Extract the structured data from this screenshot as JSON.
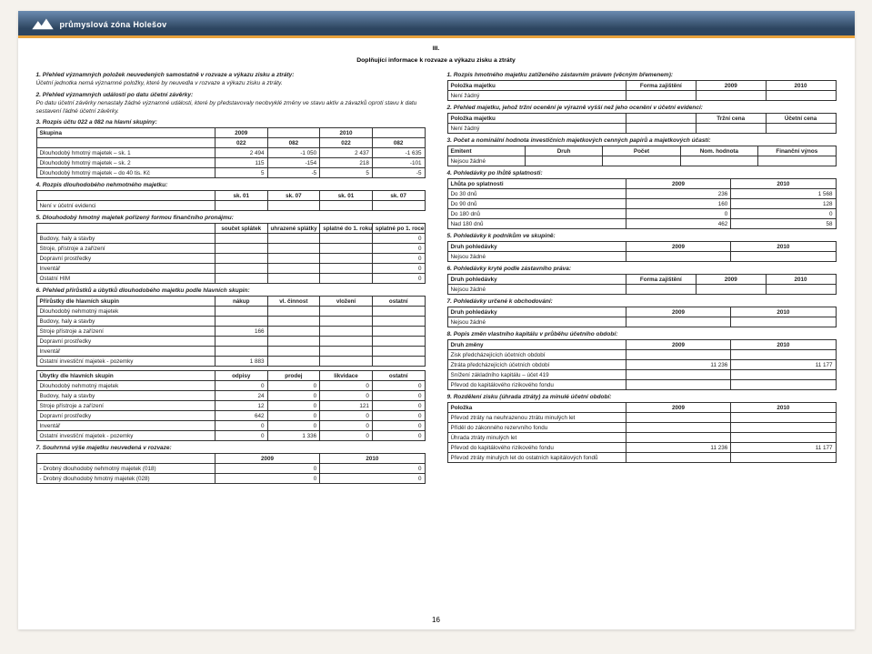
{
  "page_number": "16",
  "logo_text": "průmyslová zóna Holešov",
  "header": {
    "title_l1": "III.",
    "title_l2": "Doplňující informace k rozvaze a výkazu zisku a ztráty"
  },
  "left": {
    "i1": {
      "num": "1.",
      "title": "Přehled významných položek neuvedených samostatně v rozvaze a výkazu zisku a ztráty:",
      "text": "Účetní jednotka nemá významné položky, které by neuvedla v rozvaze a výkazu zisku a ztráty."
    },
    "i2": {
      "num": "2.",
      "title": "Přehled významných událostí po datu účetní závěrky:",
      "text": "Po datu účetní závěrky nenastaly žádné významné události, které by představovaly neobvyklé změny ve stavu aktiv a závazků oproti stavu k datu sestavení řádné účetní závěrky."
    },
    "i3": {
      "num": "3.",
      "title": "Rozpis účtu 022 a 082 na hlavní skupiny:"
    },
    "t3": {
      "head": [
        "Skupina",
        "2009",
        "",
        "2010",
        ""
      ],
      "sub": [
        "",
        "022",
        "082",
        "022",
        "082"
      ],
      "rows": [
        [
          "Dlouhodobý hmotný majetek – sk. 1",
          "2 494",
          "-1 050",
          "2 437",
          "-1 635"
        ],
        [
          "Dlouhodobý hmotný majetek – sk. 2",
          "115",
          "-154",
          "218",
          "-101"
        ],
        [
          "Dlouhodobý hmotný majetek – do 40 tis. Kč",
          "5",
          "-5",
          "5",
          "-5"
        ]
      ]
    },
    "i4": {
      "num": "4.",
      "title": "Rozpis dlouhodobého nehmotného majetku:"
    },
    "t4": {
      "head": [
        "",
        "sk. 01",
        "sk. 07",
        "sk. 01",
        "sk. 07"
      ],
      "row": [
        "Není v účetní evidenci",
        "",
        "",
        "",
        ""
      ]
    },
    "i5": {
      "num": "5.",
      "title": "Dlouhodobý hmotný majetek pořízený formou finančního pronájmu:"
    },
    "t5": {
      "head": [
        "",
        "součet splátek",
        "uhrazené splátky",
        "splatné do 1. roku",
        "splatné po 1. roce"
      ],
      "rows": [
        [
          "Budovy, haly a stavby",
          "",
          "",
          "",
          "0"
        ],
        [
          "Stroje, přístroje a zařízení",
          "",
          "",
          "",
          "0"
        ],
        [
          "Dopravní prostředky",
          "",
          "",
          "",
          "0"
        ],
        [
          "Inventář",
          "",
          "",
          "",
          "0"
        ],
        [
          "Ostatní HIM",
          "",
          "",
          "",
          "0"
        ]
      ]
    },
    "i6": {
      "num": "6.",
      "title": "Přehled přírůstků a úbytků dlouhodobého majetku podle hlavních skupin:"
    },
    "t6a": {
      "head": [
        "Přírůstky dle hlavních skupin",
        "nákup",
        "vl. činnost",
        "vložení",
        "ostatní"
      ],
      "rows": [
        [
          "Dlouhodobý nehmotný majetek",
          "",
          "",
          "",
          ""
        ],
        [
          "Budovy, haly a stavby",
          "",
          "",
          "",
          ""
        ],
        [
          "Stroje přístroje a zařízení",
          "166",
          "",
          "",
          ""
        ],
        [
          "Dopravní prostředky",
          "",
          "",
          "",
          ""
        ],
        [
          "Inventář",
          "",
          "",
          "",
          ""
        ],
        [
          "Ostatní investiční majetek - pozemky",
          "1 883",
          "",
          "",
          ""
        ]
      ]
    },
    "t6b": {
      "head": [
        "Úbytky dle hlavních skupin",
        "odpisy",
        "prodej",
        "likvidace",
        "ostatní"
      ],
      "rows": [
        [
          "Dlouhodobý nehmotný majetek",
          "0",
          "0",
          "0",
          "0"
        ],
        [
          "Budovy, haly a stavby",
          "24",
          "0",
          "0",
          "0"
        ],
        [
          "Stroje přístroje a zařízení",
          "12",
          "0",
          "121",
          "0"
        ],
        [
          "Dopravní prostředky",
          "642",
          "0",
          "0",
          "0"
        ],
        [
          "Inventář",
          "0",
          "0",
          "0",
          "0"
        ],
        [
          "Ostatní investiční majetek - pozemky",
          "0",
          "1 336",
          "0",
          "0"
        ]
      ]
    },
    "i7": {
      "num": "7.",
      "title": "Souhrnná výše majetku neuvedená v rozvaze:"
    },
    "t7": {
      "head": [
        "",
        "2009",
        "2010"
      ],
      "rows": [
        [
          "- Drobný dlouhodobý nehmotný majetek (018)",
          "0",
          "0"
        ],
        [
          "- Drobný dlouhodobý hmotný majetek (028)",
          "0",
          "0"
        ]
      ]
    }
  },
  "right": {
    "i1": {
      "num": "1.",
      "title": "Rozpis hmotného majetku zatíženého zástavním právem (věcným břemenem):"
    },
    "t1": {
      "head": [
        "Položka majetku",
        "Forma zajištění",
        "2009",
        "2010"
      ],
      "row": [
        "Není žádný",
        "",
        "",
        ""
      ]
    },
    "i2": {
      "num": "2.",
      "title": "Přehled majetku, jehož tržní ocenění je výrazně vyšší než jeho ocenění v účetní evidenci:"
    },
    "t2": {
      "head": [
        "Položka majetku",
        "",
        "Tržní cena",
        "Účetní cena"
      ],
      "row": [
        "Není žádný",
        "",
        "",
        ""
      ]
    },
    "i3": {
      "num": "3.",
      "title": "Počet a nominální hodnota investičních majetkových cenných papírů a majetkových účastí:"
    },
    "t3": {
      "head": [
        "Emitent",
        "Druh",
        "Počet",
        "Nom. hodnota",
        "Finanční výnos"
      ],
      "row": [
        "Nejsou žádné",
        "",
        "",
        "",
        ""
      ]
    },
    "i4": {
      "num": "4.",
      "title": "Pohledávky po lhůtě splatnosti:"
    },
    "t4": {
      "head": [
        "Lhůta po splatnosti",
        "2009",
        "2010"
      ],
      "rows": [
        [
          "Do 30 dnů",
          "236",
          "1 568"
        ],
        [
          "Do 90 dnů",
          "160",
          "128"
        ],
        [
          "Do 180 dnů",
          "0",
          "0"
        ],
        [
          "Nad 180 dnů",
          "462",
          "58"
        ]
      ]
    },
    "i5": {
      "num": "5.",
      "title": "Pohledávky k podnikům ve skupině:"
    },
    "t5": {
      "head": [
        "Druh pohledávky",
        "2009",
        "2010"
      ],
      "row": [
        "Nejsou žádné",
        "",
        ""
      ]
    },
    "i6": {
      "num": "6.",
      "title": "Pohledávky kryté podle zástavního práva:"
    },
    "t6": {
      "head": [
        "Druh pohledávky",
        "Forma zajištění",
        "2009",
        "2010"
      ],
      "row": [
        "Nejsou žádné",
        "",
        "",
        ""
      ]
    },
    "i7": {
      "num": "7.",
      "title": "Pohledávky určené k obchodování:"
    },
    "t7": {
      "head": [
        "Druh pohledávky",
        "2009",
        "2010"
      ],
      "row": [
        "Nejsou žádné",
        "",
        ""
      ]
    },
    "i8": {
      "num": "8.",
      "title": "Popis změn vlastního kapitálu v průběhu účetního období:"
    },
    "t8": {
      "head": [
        "Druh změny",
        "2009",
        "2010"
      ],
      "rows": [
        [
          "Zisk předcházejících účetních období",
          "",
          ""
        ],
        [
          "Ztráta předcházejících účetních období",
          "11 236",
          "11 177"
        ],
        [
          "Snížení základního kapitálu – účet 419",
          "",
          ""
        ],
        [
          "Převod do kapitálového rizikového fondu",
          "",
          ""
        ]
      ]
    },
    "i9": {
      "num": "9.",
      "title": "Rozdělení zisku (úhrada ztráty) za minulé účetní období:"
    },
    "t9": {
      "head": [
        "Položka",
        "2009",
        "2010"
      ],
      "rows": [
        [
          "Převod ztráty na neuhrazenou ztrátu minulých let",
          "",
          ""
        ],
        [
          "Příděl do zákonného rezervního fondu",
          "",
          ""
        ],
        [
          "Úhrada ztráty minulých let",
          "",
          ""
        ],
        [
          "Převod do kapitálového rizikového fondu",
          "11 236",
          "11 177"
        ],
        [
          "Převod ztráty minulých let do ostatních kapitálových fondů",
          "",
          ""
        ]
      ]
    }
  }
}
